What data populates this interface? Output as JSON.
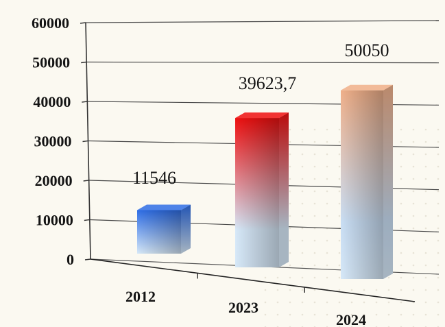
{
  "chart_data": {
    "type": "bar",
    "categories": [
      "2012",
      "2023",
      "2024"
    ],
    "values": [
      11546,
      39623.7,
      50050
    ],
    "value_labels": [
      "11546",
      "39623,7",
      "50050"
    ],
    "yticks": [
      "0",
      "10000",
      "20000",
      "30000",
      "40000",
      "50000",
      "60000"
    ],
    "ylim": [
      0,
      60000
    ],
    "grid": true,
    "colors": [
      "#2f6ee6",
      "#ee1010",
      "#f0b08a"
    ]
  }
}
